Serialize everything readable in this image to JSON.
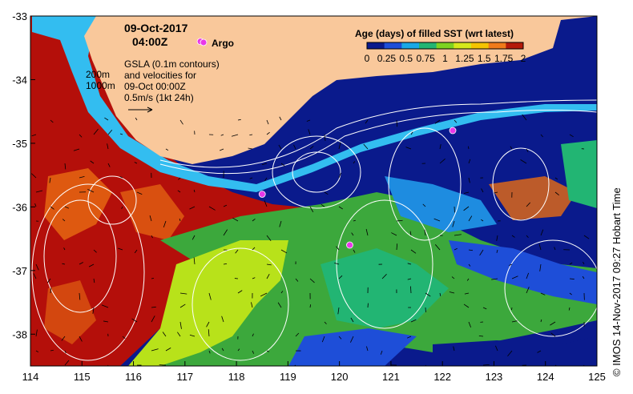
{
  "map": {
    "date_line": "09-Oct-2017",
    "time_line": "04:00Z",
    "argo_label": "Argo",
    "gsla_lines": [
      "GSLA (0.1m contours)",
      "and velocities for",
      "09-Oct 00:00Z",
      "0.5m/s (1kt 24h)"
    ],
    "depth_labels": [
      "200m",
      "1000m"
    ],
    "legend": {
      "title": "Age (days) of filled SST (wrt latest)",
      "ticks": [
        "0",
        "0.25",
        "0.5",
        "0.75",
        "1",
        "1.25",
        "1.5",
        "1.75",
        "2"
      ],
      "range": [
        0,
        2
      ],
      "colors": [
        "#0a1a8c",
        "#1e4ed8",
        "#1aa8e6",
        "#22b573",
        "#7ed321",
        "#d6e81a",
        "#f5c400",
        "#f07a1a",
        "#b41a0a"
      ]
    },
    "credit": "© IMOS 14-Nov-2017 09:27 Hobart Time",
    "x_axis": {
      "min": 114,
      "max": 125,
      "ticks": [
        "114",
        "115",
        "116",
        "117",
        "118",
        "119",
        "120",
        "121",
        "122",
        "123",
        "124",
        "125"
      ]
    },
    "y_axis": {
      "min": -38.5,
      "max": -33,
      "ticks": [
        "-33",
        "-34",
        "-35",
        "-36",
        "-37",
        "-38"
      ]
    },
    "argo_floats": [
      {
        "lon": 117.3,
        "lat": -33.4
      },
      {
        "lon": 118.5,
        "lat": -35.8
      },
      {
        "lon": 120.2,
        "lat": -36.6
      },
      {
        "lon": 122.2,
        "lat": -34.8
      }
    ],
    "colors": {
      "land": "#f9c89b",
      "coast_shelf": "#33bdf0",
      "deep_blue": "#0a1a8c",
      "red": "#b40f0a",
      "green": "#3ca83c",
      "lime": "#b8e21a",
      "contour": "#ffffff"
    }
  }
}
